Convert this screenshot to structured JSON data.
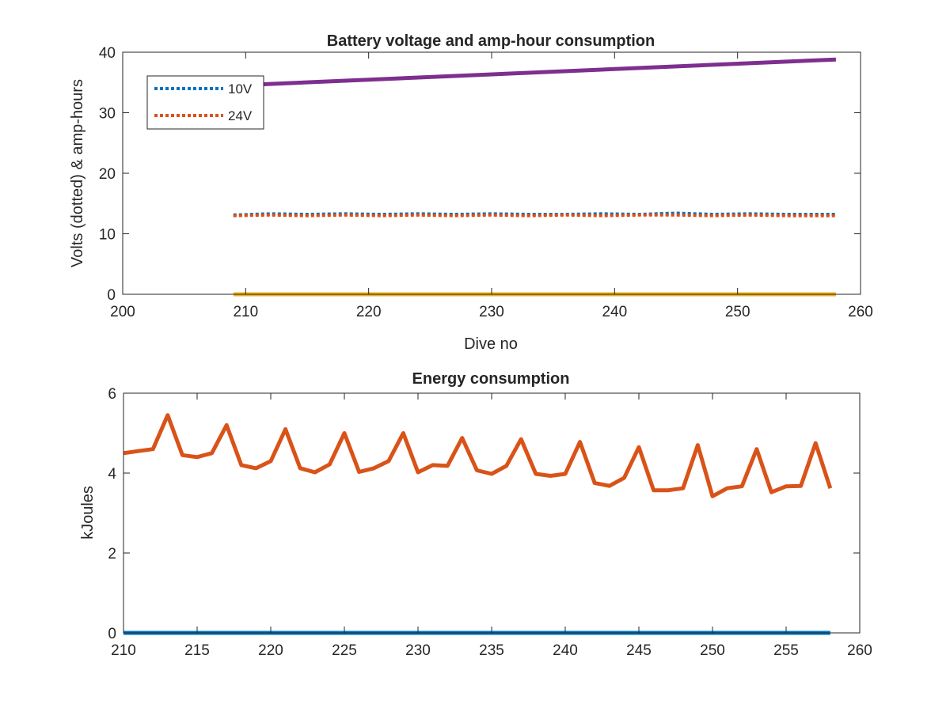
{
  "chart_data": [
    {
      "type": "line",
      "title": "Battery voltage and amp-hour consumption",
      "xlabel": "Dive no",
      "ylabel": "Volts (dotted) & amp-hours",
      "xlim": [
        200,
        260
      ],
      "ylim": [
        0,
        40
      ],
      "xticks": [
        200,
        210,
        220,
        230,
        240,
        250,
        260
      ],
      "yticks": [
        0,
        10,
        20,
        30,
        40
      ],
      "grid": false,
      "legend_position": "top-left",
      "series": [
        {
          "name": "10V",
          "style": "dotted",
          "color": "#0072BD",
          "x": [
            209,
            212,
            215,
            218,
            221,
            224,
            227,
            230,
            233,
            236,
            239,
            242,
            245,
            248,
            251,
            254,
            258
          ],
          "y": [
            13.1,
            13.3,
            13.2,
            13.3,
            13.2,
            13.3,
            13.2,
            13.3,
            13.2,
            13.2,
            13.3,
            13.2,
            13.4,
            13.2,
            13.3,
            13.2,
            13.2
          ]
        },
        {
          "name": "24V",
          "style": "dotted",
          "color": "#D95319",
          "x": [
            209,
            212,
            215,
            218,
            221,
            224,
            227,
            230,
            233,
            236,
            239,
            242,
            245,
            248,
            251,
            254,
            258
          ],
          "y": [
            13.0,
            13.1,
            13.0,
            13.1,
            13.0,
            13.1,
            13.0,
            13.1,
            13.0,
            13.1,
            13.0,
            13.1,
            13.1,
            13.0,
            13.1,
            13.0,
            13.0
          ]
        },
        {
          "style": "solid",
          "color": "#7E2F8E",
          "x": [
            209,
            258
          ],
          "y": [
            34.5,
            38.8
          ]
        },
        {
          "style": "solid",
          "color": "#EDB120",
          "x": [
            209,
            258
          ],
          "y": [
            0,
            0
          ]
        }
      ]
    },
    {
      "type": "line",
      "title": "Energy consumption",
      "xlabel": "",
      "ylabel": "kJoules",
      "xlim": [
        210,
        260
      ],
      "ylim": [
        0,
        6
      ],
      "xticks": [
        210,
        215,
        220,
        225,
        230,
        235,
        240,
        245,
        250,
        255,
        260
      ],
      "yticks": [
        0,
        2,
        4,
        6
      ],
      "grid": false,
      "series": [
        {
          "style": "solid",
          "color": "#D95319",
          "x": [
            210,
            211,
            212,
            213,
            214,
            215,
            216,
            217,
            218,
            219,
            220,
            221,
            222,
            223,
            224,
            225,
            226,
            227,
            228,
            229,
            230,
            231,
            232,
            233,
            234,
            235,
            236,
            237,
            238,
            239,
            240,
            241,
            242,
            243,
            244,
            245,
            246,
            247,
            248,
            249,
            250,
            251,
            252,
            253,
            254,
            255,
            256,
            257,
            258
          ],
          "y": [
            4.5,
            4.55,
            4.6,
            5.45,
            4.45,
            4.4,
            4.5,
            5.2,
            4.2,
            4.12,
            4.3,
            5.1,
            4.12,
            4.02,
            4.22,
            5.0,
            4.03,
            4.12,
            4.3,
            5.0,
            4.02,
            4.2,
            4.18,
            4.88,
            4.07,
            3.98,
            4.18,
            4.85,
            3.98,
            3.93,
            3.98,
            4.78,
            3.75,
            3.68,
            3.88,
            4.65,
            3.57,
            3.57,
            3.62,
            4.7,
            3.42,
            3.62,
            3.67,
            4.6,
            3.52,
            3.67,
            3.68,
            4.75,
            3.62
          ]
        },
        {
          "style": "solid",
          "color": "#0072BD",
          "x": [
            210,
            258
          ],
          "y": [
            0,
            0
          ]
        }
      ]
    }
  ]
}
